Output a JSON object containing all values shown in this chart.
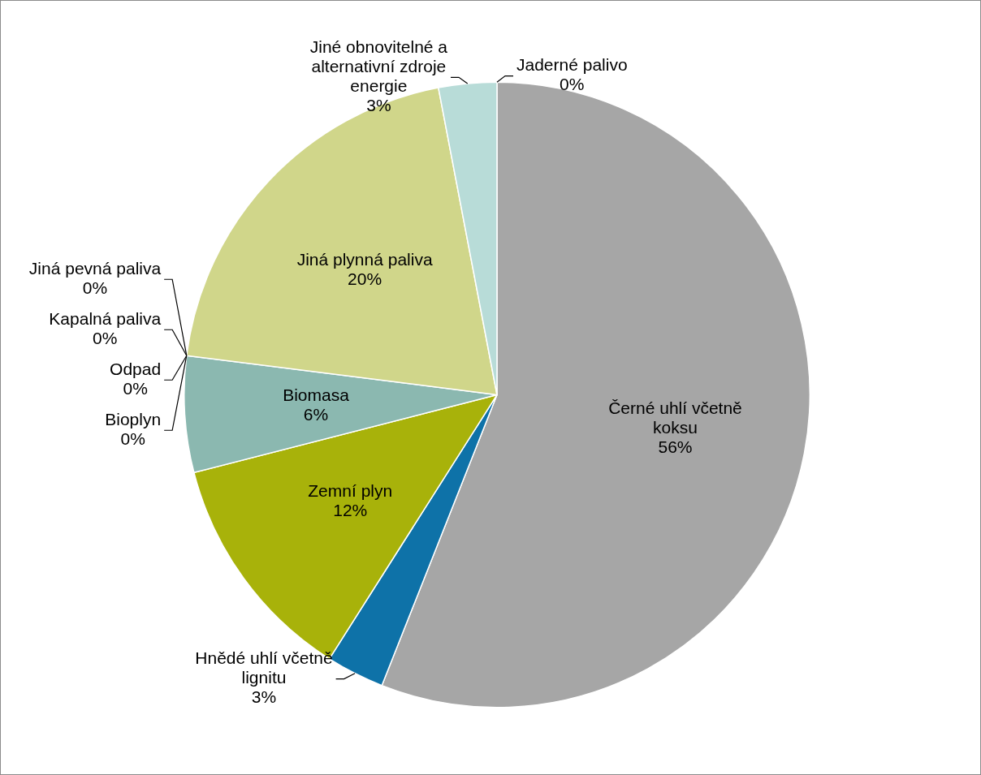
{
  "chart_data": {
    "type": "pie",
    "categories": [
      "Černé uhlí včetně koksu",
      "Hnědé uhlí včetně lignitu",
      "Zemní plyn",
      "Biomasa",
      "Bioplyn",
      "Odpad",
      "Kapalná paliva",
      "Jiná pevná paliva",
      "Jiná plynná paliva",
      "Jiné obnovitelné a alternativní zdroje energie",
      "Jaderné palivo"
    ],
    "values": [
      56,
      3,
      12,
      6,
      0,
      0,
      0,
      0,
      20,
      3,
      0
    ],
    "value_labels": [
      "56%",
      "3%",
      "12%",
      "6%",
      "0%",
      "0%",
      "0%",
      "0%",
      "20%",
      "3%",
      "0%"
    ],
    "colors": [
      "#a6a6a6",
      "#0e72a8",
      "#a8b20a",
      "#8bb8b0",
      "#5f9e94",
      "#6e7b2c",
      "#4b8cb8",
      "#7a7a7a",
      "#d0d68a",
      "#b8dcd8",
      "#dde9a0"
    ]
  }
}
